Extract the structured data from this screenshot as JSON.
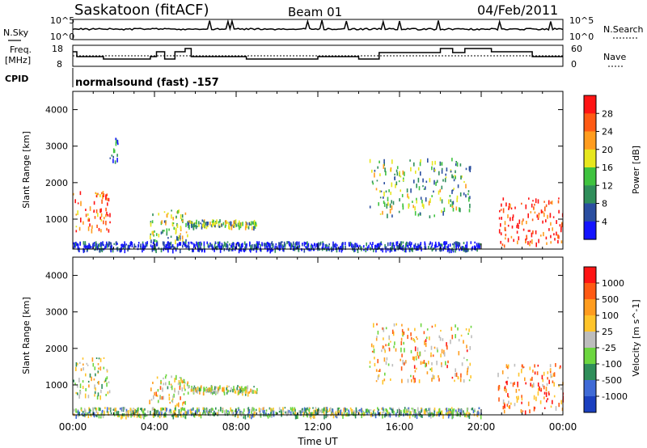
{
  "header": {
    "station": "Saskatoon (fitACF)",
    "beam": "Beam 01",
    "date": "04/Feb/2011"
  },
  "top_panels": {
    "nsky_label": "N.Sky",
    "nsearch_label": "N.Search",
    "nsky_ticks": [
      "10^5",
      "10^0"
    ],
    "nsearch_ticks": [
      "10^5",
      "10^0"
    ],
    "freq_label_1": "Freq.",
    "freq_label_2": "[MHz]",
    "freq_ticks": [
      "18",
      "8"
    ],
    "nave_ticks": [
      "60",
      "0"
    ],
    "nave_label": "Nave",
    "cpid_label": "CPID",
    "cpid_text": "normalsound (fast) -157"
  },
  "chart_data": [
    {
      "type": "heatmap",
      "title": "",
      "xlabel": "",
      "ylabel": "Slant Range [km]",
      "ylim": [
        180,
        4500
      ],
      "y_ticks": [
        "4000",
        "3000",
        "2000",
        "1000"
      ],
      "colorbar_label": "Power [dB]",
      "colorbar_ticks": [
        "28",
        "24",
        "20",
        "16",
        "12",
        "8",
        "4"
      ],
      "colorbar_colors": [
        "#1414ff",
        "#2a4ea0",
        "#2f8e5a",
        "#3fc33f",
        "#e7e71e",
        "#ff9c1e",
        "#ff5a14",
        "#ff1414"
      ],
      "echo_regions": [
        {
          "t": [
            0.0,
            1.8
          ],
          "r": [
            700,
            1800
          ],
          "level": 0.85
        },
        {
          "t": [
            1.8,
            2.2
          ],
          "r": [
            2600,
            3300
          ],
          "level": 0.2
        },
        {
          "t": [
            3.7,
            5.6
          ],
          "r": [
            400,
            1300
          ],
          "level": 0.45
        },
        {
          "t": [
            5.6,
            9.0
          ],
          "r": [
            800,
            1000
          ],
          "level": 0.4
        },
        {
          "t": [
            14.5,
            19.5
          ],
          "r": [
            1100,
            2700
          ],
          "level": 0.4
        },
        {
          "t": [
            20.8,
            24.0
          ],
          "r": [
            300,
            1600
          ],
          "level": 0.9
        },
        {
          "t": [
            0.0,
            20.0
          ],
          "r": [
            180,
            400
          ],
          "level": 0.1
        }
      ]
    },
    {
      "type": "heatmap",
      "title": "",
      "xlabel": "Time UT",
      "ylabel": "Slant Range [km]",
      "ylim": [
        180,
        4500
      ],
      "y_ticks": [
        "4000",
        "3000",
        "2000",
        "1000"
      ],
      "x_ticks": [
        "00:00",
        "04:00",
        "08:00",
        "12:00",
        "16:00",
        "20:00",
        "00:00"
      ],
      "colorbar_label": "Velocity [m s^-1]",
      "colorbar_ticks": [
        "1000",
        "500",
        "100",
        "25",
        "-25",
        "-100",
        "-500",
        "-1000"
      ],
      "colorbar_colors": [
        "#1a3fbf",
        "#3f6ad6",
        "#2f8e5a",
        "#6cd63f",
        "#bdbdbd",
        "#ffc42a",
        "#ff9c1e",
        "#ff5a14",
        "#ff1414"
      ],
      "echo_regions": [
        {
          "t": [
            0.0,
            1.8
          ],
          "r": [
            700,
            1800
          ],
          "level": 0.5
        },
        {
          "t": [
            3.7,
            5.6
          ],
          "r": [
            400,
            1300
          ],
          "level": 0.6
        },
        {
          "t": [
            5.6,
            9.0
          ],
          "r": [
            800,
            1000
          ],
          "level": 0.5
        },
        {
          "t": [
            14.5,
            19.5
          ],
          "r": [
            1100,
            2700
          ],
          "level": 0.65
        },
        {
          "t": [
            20.8,
            24.0
          ],
          "r": [
            300,
            1600
          ],
          "level": 0.75
        },
        {
          "t": [
            0.0,
            20.0
          ],
          "r": [
            180,
            400
          ],
          "level": 0.4
        }
      ]
    }
  ]
}
